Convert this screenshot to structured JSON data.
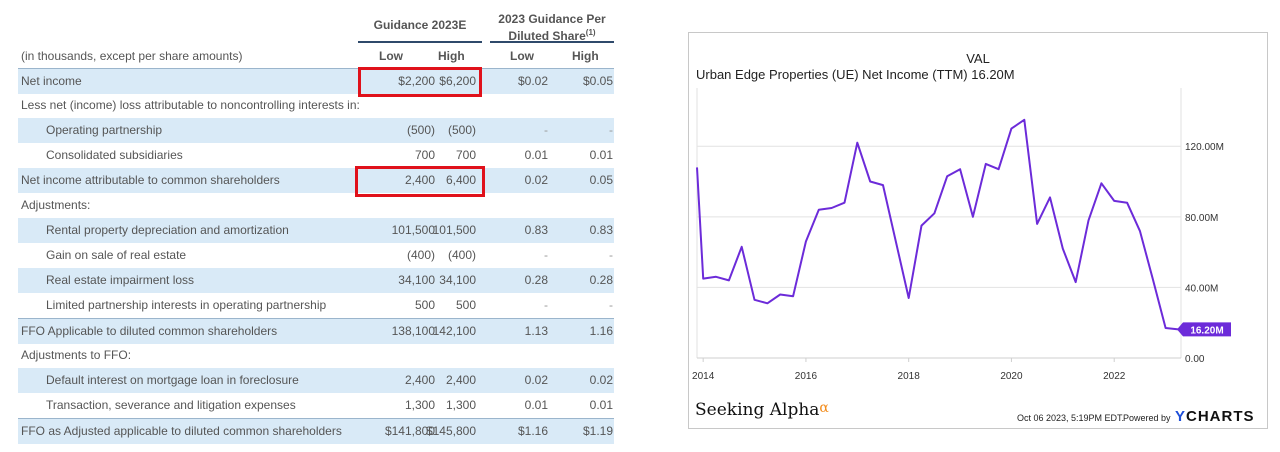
{
  "table": {
    "header_guidance": "Guidance 2023E",
    "header_per_share_line1": "2023 Guidance Per",
    "header_per_share_line2": "Diluted Share",
    "header_per_share_footnote": "(1)",
    "units_label": "(in thousands, except per share amounts)",
    "col_low": "Low",
    "col_high": "High",
    "rows": [
      {
        "label": "Net income",
        "low": "$2,200",
        "high": "$6,200",
        "ps_low": "$0.02",
        "ps_high": "$0.05"
      },
      {
        "label": "Less net (income) loss attributable to noncontrolling interests in:",
        "low": "",
        "high": "",
        "ps_low": "",
        "ps_high": ""
      },
      {
        "label": "Operating partnership",
        "low": "(500)",
        "high": "(500)",
        "ps_low": "-",
        "ps_high": "-"
      },
      {
        "label": "Consolidated subsidiaries",
        "low": "700",
        "high": "700",
        "ps_low": "0.01",
        "ps_high": "0.01"
      },
      {
        "label": "Net income attributable to common shareholders",
        "low": "2,400",
        "high": "6,400",
        "ps_low": "0.02",
        "ps_high": "0.05"
      },
      {
        "label": "Adjustments:",
        "low": "",
        "high": "",
        "ps_low": "",
        "ps_high": ""
      },
      {
        "label": "Rental property depreciation and amortization",
        "low": "101,500",
        "high": "101,500",
        "ps_low": "0.83",
        "ps_high": "0.83"
      },
      {
        "label": "Gain on sale of real estate",
        "low": "(400)",
        "high": "(400)",
        "ps_low": "-",
        "ps_high": "-"
      },
      {
        "label": "Real estate impairment loss",
        "low": "34,100",
        "high": "34,100",
        "ps_low": "0.28",
        "ps_high": "0.28"
      },
      {
        "label": "Limited partnership interests in operating partnership",
        "low": "500",
        "high": "500",
        "ps_low": "-",
        "ps_high": "-"
      },
      {
        "label": "FFO Applicable to diluted common shareholders",
        "low": "138,100",
        "high": "142,100",
        "ps_low": "1.13",
        "ps_high": "1.16"
      },
      {
        "label": "Adjustments to FFO:",
        "low": "",
        "high": "",
        "ps_low": "",
        "ps_high": ""
      },
      {
        "label": "Default interest on mortgage loan in foreclosure",
        "low": "2,400",
        "high": "2,400",
        "ps_low": "0.02",
        "ps_high": "0.02"
      },
      {
        "label": "Transaction, severance and litigation expenses",
        "low": "1,300",
        "high": "1,300",
        "ps_low": "0.01",
        "ps_high": "0.01"
      },
      {
        "label": "FFO as Adjusted applicable to diluted common shareholders",
        "low": "$141,800",
        "high": "$145,800",
        "ps_low": "$1.16",
        "ps_high": "$1.19"
      }
    ],
    "highlight_color": "#e0111b",
    "shade_color": "#d9eaf7"
  },
  "chart_footer": {
    "brand_left": "Seeking Alpha",
    "brand_symbol": "α",
    "timestamp": "Oct 06 2023, 5:19PM EDT.",
    "powered_by": "Powered by",
    "brand_right_y": "Y",
    "brand_right_rest": "CHARTS"
  },
  "chart_data": {
    "type": "line",
    "title": "VAL",
    "subtitle": "Urban Edge Properties (UE) Net Income (TTM)   16.20M",
    "series": [
      {
        "name": "Urban Edge Properties (UE) Net Income (TTM)",
        "color": "#6c2bd9",
        "points": [
          [
            2013.88,
            108
          ],
          [
            2014.0,
            45
          ],
          [
            2014.25,
            46
          ],
          [
            2014.5,
            44
          ],
          [
            2014.75,
            63
          ],
          [
            2015.0,
            33
          ],
          [
            2015.25,
            31
          ],
          [
            2015.5,
            36
          ],
          [
            2015.75,
            35
          ],
          [
            2016.0,
            66
          ],
          [
            2016.25,
            84
          ],
          [
            2016.5,
            85
          ],
          [
            2016.75,
            88
          ],
          [
            2017.0,
            122
          ],
          [
            2017.25,
            100
          ],
          [
            2017.5,
            98
          ],
          [
            2018.0,
            34
          ],
          [
            2018.25,
            75
          ],
          [
            2018.5,
            82
          ],
          [
            2018.75,
            103
          ],
          [
            2019.0,
            107
          ],
          [
            2019.25,
            80
          ],
          [
            2019.5,
            110
          ],
          [
            2019.75,
            107
          ],
          [
            2020.0,
            130
          ],
          [
            2020.25,
            135
          ],
          [
            2020.5,
            76
          ],
          [
            2020.75,
            91
          ],
          [
            2021.0,
            62
          ],
          [
            2021.25,
            43
          ],
          [
            2021.5,
            78
          ],
          [
            2021.75,
            99
          ],
          [
            2022.0,
            89
          ],
          [
            2022.25,
            88
          ],
          [
            2022.5,
            72
          ],
          [
            2022.75,
            45
          ],
          [
            2023.0,
            17
          ],
          [
            2023.25,
            16.2
          ]
        ]
      }
    ],
    "x_ticks": [
      "2014",
      "2016",
      "2018",
      "2020",
      "2022"
    ],
    "x_tick_values": [
      2014,
      2016,
      2018,
      2020,
      2022
    ],
    "xlim": [
      2013.88,
      2023.3
    ],
    "y_ticks": [
      "0.00",
      "40.00M",
      "80.00M",
      "120.00M"
    ],
    "y_tick_values": [
      0,
      40,
      80,
      120
    ],
    "ylim": [
      0,
      153
    ],
    "last_value_label": "16.20M",
    "last_value": 16.2,
    "grid": true,
    "y_axis_side": "right"
  }
}
